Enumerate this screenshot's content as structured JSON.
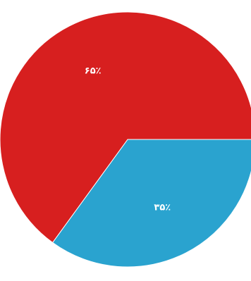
{
  "chart_data": {
    "type": "pie",
    "title": "",
    "slices": [
      {
        "label": "۶۵٪",
        "value": 65,
        "color": "#d71f1f"
      },
      {
        "label": "۳۵٪",
        "value": 35,
        "color": "#2aa3cf"
      }
    ],
    "legend": "none"
  }
}
